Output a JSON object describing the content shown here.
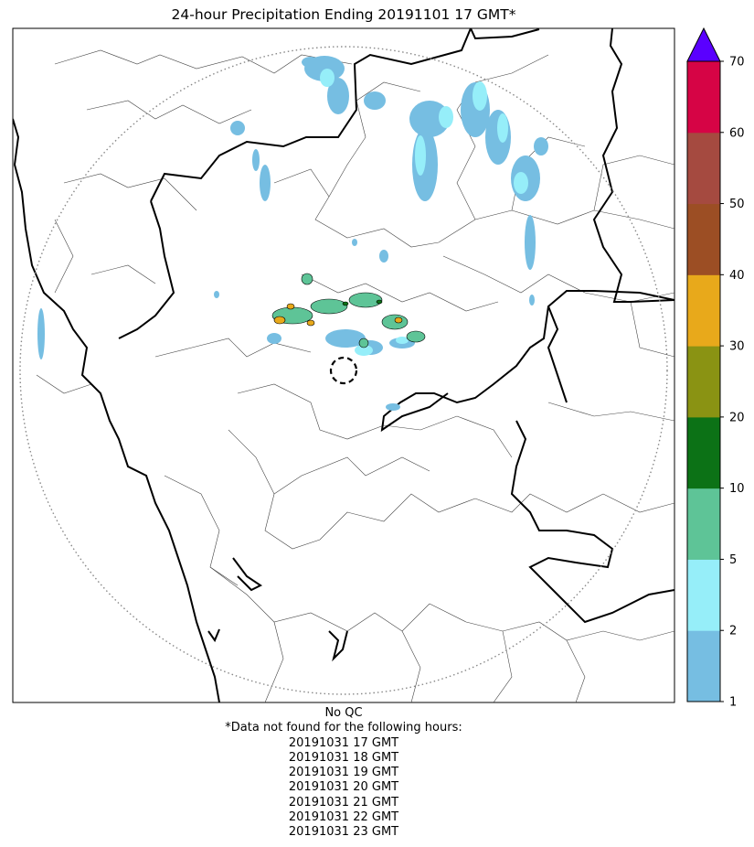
{
  "title": "24-hour Precipitation Ending 20191101 17 GMT*",
  "qc_label": "No QC",
  "missing_header": "*Data not found for the following hours:",
  "missing_hours": [
    "20191031 17 GMT",
    "20191031 18 GMT",
    "20191031 19 GMT",
    "20191031 20 GMT",
    "20191031 21 GMT",
    "20191031 22 GMT",
    "20191031 23 GMT"
  ],
  "colorbar": {
    "boundaries": [
      1,
      2,
      5,
      10,
      20,
      30,
      40,
      50,
      60,
      70
    ],
    "tick_labels": [
      "1",
      "2",
      "5",
      "10",
      "20",
      "30",
      "40",
      "50",
      "60",
      "70"
    ],
    "colors": [
      "#76bee2",
      "#96eef9",
      "#5ec497",
      "#0c7216",
      "#8a9313",
      "#e8a91b",
      "#9c4e24",
      "#a54a40",
      "#d60445"
    ],
    "extend_color": "#5a00ff",
    "extend": "max"
  },
  "map": {
    "radar_range_ring": "dotted circle",
    "radar_site_marker": "dashed circle",
    "precip_colors": {
      "light": "#76bee2",
      "moderate": "#96eef9",
      "heavy": "#5ec497",
      "very_heavy": "#e8a91b"
    }
  }
}
